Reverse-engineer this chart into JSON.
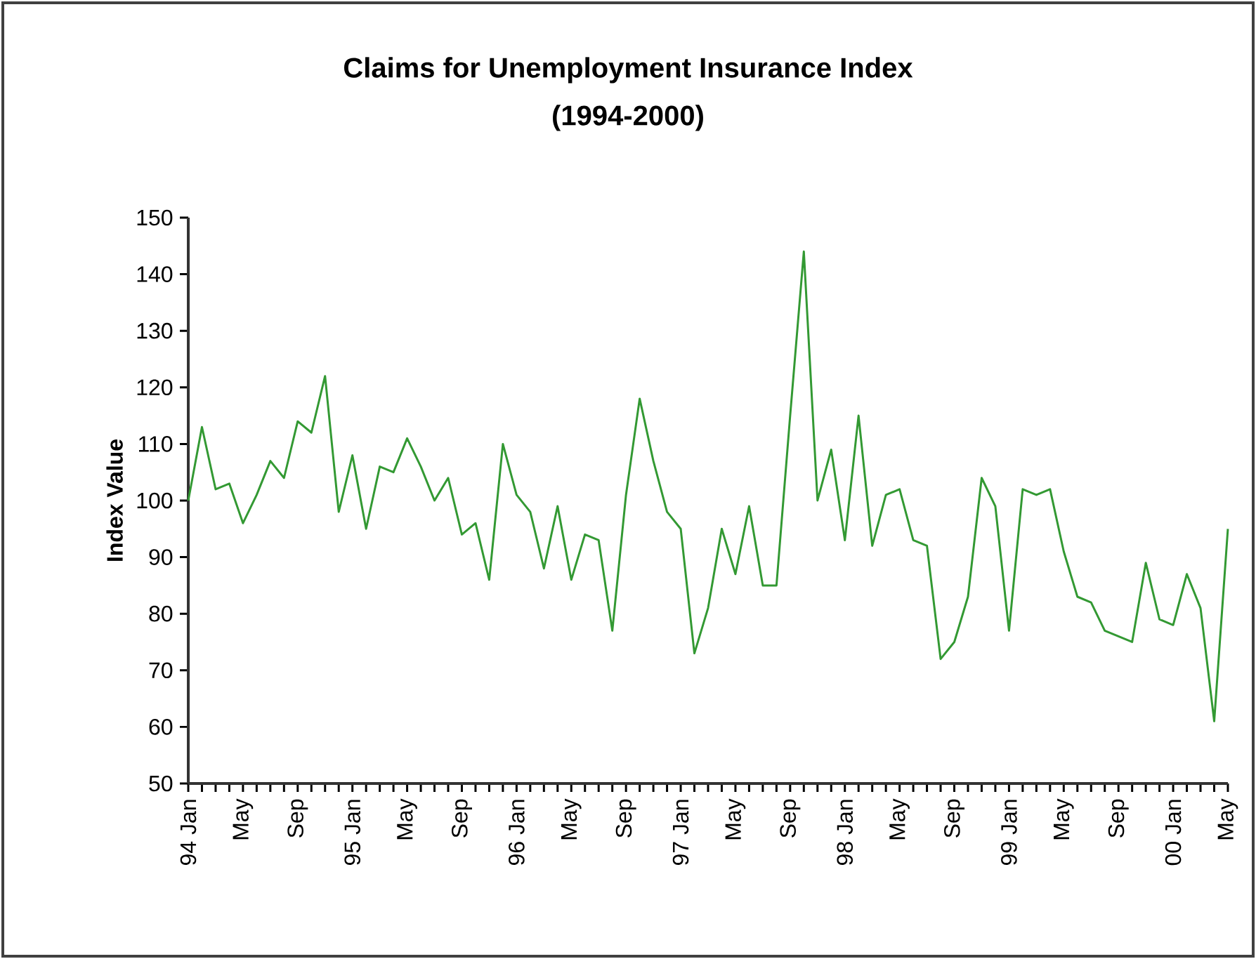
{
  "chart_data": {
    "type": "line",
    "title": "Claims for Unemployment Insurance Index",
    "subtitle": "(1994-2000)",
    "ylabel": "Index Value",
    "categories": [
      "94 Jan",
      null,
      null,
      null,
      "May",
      null,
      null,
      null,
      "Sep",
      null,
      null,
      null,
      "95 Jan",
      null,
      null,
      null,
      "May",
      null,
      null,
      null,
      "Sep",
      null,
      null,
      null,
      "96 Jan",
      null,
      null,
      null,
      "May",
      null,
      null,
      null,
      "Sep",
      null,
      null,
      null,
      "97 Jan",
      null,
      null,
      null,
      "May",
      null,
      null,
      null,
      "Sep",
      null,
      null,
      null,
      "98 Jan",
      null,
      null,
      null,
      "May",
      null,
      null,
      null,
      "Sep",
      null,
      null,
      null,
      "99 Jan",
      null,
      null,
      null,
      "May",
      null,
      null,
      null,
      "Sep",
      null,
      null,
      null,
      "00 Jan",
      null,
      null,
      null,
      "May"
    ],
    "values": [
      100,
      113,
      102,
      103,
      96,
      101,
      107,
      104,
      114,
      112,
      122,
      98,
      108,
      95,
      106,
      105,
      111,
      106,
      100,
      104,
      94,
      96,
      86,
      110,
      101,
      98,
      88,
      99,
      86,
      94,
      93,
      77,
      101,
      118,
      107,
      98,
      95,
      73,
      81,
      95,
      87,
      99,
      85,
      85,
      115,
      144,
      100,
      109,
      93,
      115,
      92,
      101,
      102,
      93,
      92,
      72,
      75,
      83,
      104,
      99,
      77,
      102,
      101,
      102,
      91,
      83,
      82,
      77,
      76,
      75,
      89,
      79,
      78,
      87,
      81,
      61,
      95
    ],
    "color": "#339933",
    "line_style": "solid",
    "ylim": [
      50,
      150
    ],
    "yticks": [
      50,
      60,
      70,
      80,
      90,
      100,
      110,
      120,
      130,
      140,
      150
    ]
  }
}
